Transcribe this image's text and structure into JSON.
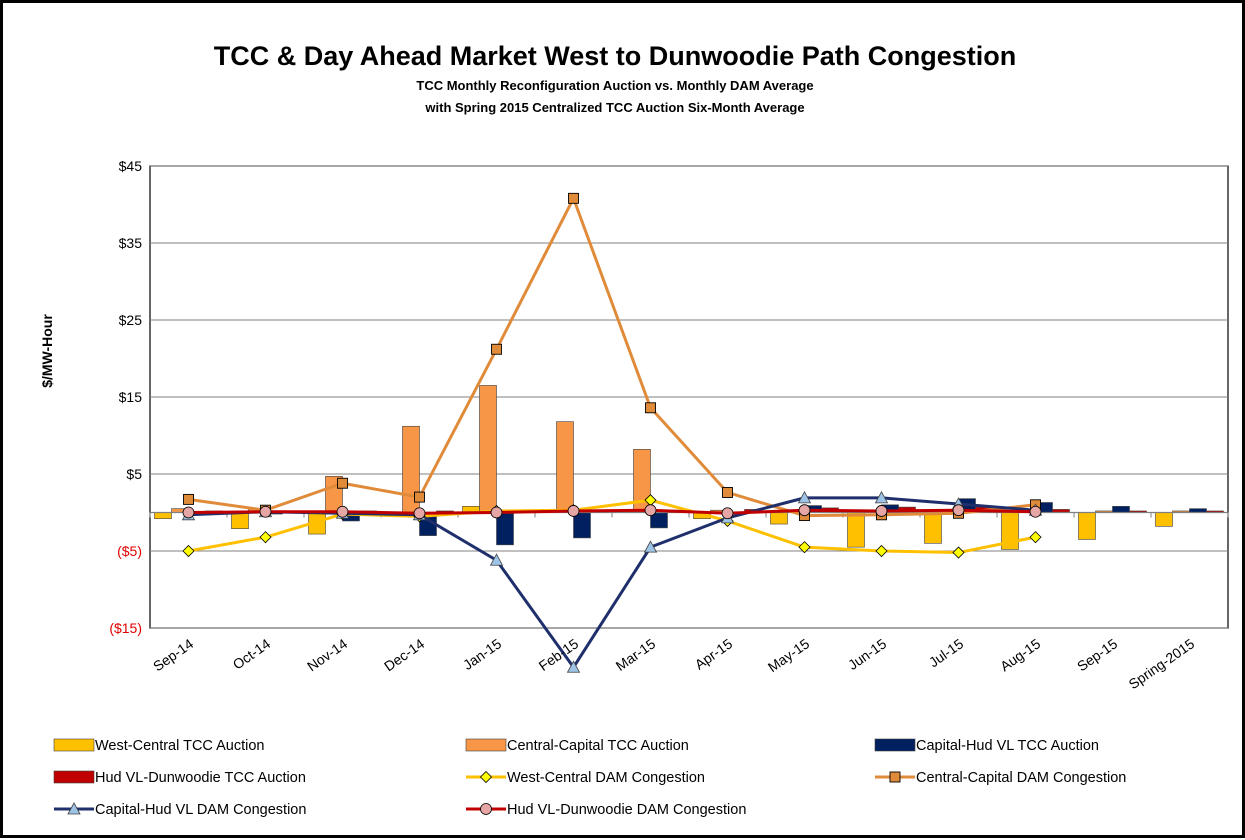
{
  "chart_data": {
    "type": "bar",
    "title": "TCC & Day Ahead Market West to Dunwoodie Path Congestion",
    "subtitle_lines": [
      "TCC Monthly Reconfiguration  Auction vs. Monthly DAM Average",
      "with  Spring 2015 Centralized TCC Auction Six-Month Average"
    ],
    "ylabel": "$/MW-Hour",
    "xlabel": "",
    "ylim": [
      -15,
      45
    ],
    "yticks": [
      {
        "value": 45,
        "label": "$45"
      },
      {
        "value": 35,
        "label": "$35"
      },
      {
        "value": 25,
        "label": "$25"
      },
      {
        "value": 15,
        "label": "$15"
      },
      {
        "value": 5,
        "label": "$5"
      },
      {
        "value": -5,
        "label": "($5)"
      },
      {
        "value": -15,
        "label": "($15)"
      }
    ],
    "categories": [
      "Sep-14",
      "Oct-14",
      "Nov-14",
      "Dec-14",
      "Jan-15",
      "Feb-15",
      "Mar-15",
      "Apr-15",
      "May-15",
      "Jun-15",
      "Jul-15",
      "Aug-15",
      "Sep-15",
      "Spring-2015"
    ],
    "grid": true,
    "legend_position": "bottom",
    "bar_series": [
      {
        "name": "West-Central TCC Auction",
        "color": "#ffc000",
        "values": [
          -0.8,
          -2.1,
          -2.8,
          -0.5,
          0.8,
          0.4,
          0.2,
          -0.8,
          -1.5,
          -4.5,
          -4.0,
          -4.8,
          -3.5,
          -1.8
        ]
      },
      {
        "name": "Central-Capital  TCC Auction",
        "color": "#f79646",
        "values": [
          0.5,
          0.5,
          4.7,
          11.2,
          16.5,
          11.8,
          8.2,
          0.3,
          0.3,
          0.3,
          0.3,
          0.3,
          0.2,
          0.2
        ]
      },
      {
        "name": "Capital-Hud VL  TCC Auction",
        "color": "#002060",
        "values": [
          -0.3,
          -0.2,
          -1.1,
          -3.0,
          -4.2,
          -3.3,
          -2.0,
          -0.2,
          0.9,
          1.0,
          1.8,
          1.3,
          0.8,
          0.5
        ]
      },
      {
        "name": "Hud VL-Dunwoodie  TCC Auction",
        "color": "#c00000",
        "values": [
          0.2,
          0.2,
          0.2,
          0.2,
          0.3,
          0.3,
          0.3,
          0.4,
          0.6,
          0.7,
          0.7,
          0.4,
          0.2,
          0.2
        ]
      }
    ],
    "line_series": [
      {
        "name": "West-Central  DAM Congestion",
        "color": "#ffc000",
        "marker": "diamond",
        "marker_fill": "#ffff00",
        "values": [
          -5.0,
          -3.2,
          -0.2,
          -0.5,
          0.2,
          0.3,
          1.6,
          -1.1,
          -4.5,
          -5.0,
          -5.2,
          -3.2,
          null,
          null
        ]
      },
      {
        "name": "Central-Capital  DAM Congestion",
        "color": "#e08b3a",
        "marker": "square",
        "marker_fill": "#e08b3a",
        "values": [
          1.7,
          0.3,
          3.8,
          2.0,
          21.2,
          40.8,
          13.6,
          2.6,
          -0.4,
          -0.3,
          -0.1,
          1.0,
          null,
          null
        ]
      },
      {
        "name": "Capital-Hud VL  DAM Congestion",
        "color": "#1f2f6b",
        "marker": "triangle",
        "marker_fill": "#9dc3e6",
        "values": [
          -0.3,
          0.1,
          -0.1,
          -0.3,
          -6.2,
          -20.1,
          -4.5,
          -0.7,
          1.9,
          1.9,
          1.1,
          0.3,
          null,
          null
        ]
      },
      {
        "name": "Hud VL-Dunwoodie  DAM Congestion",
        "color": "#c00000",
        "marker": "circle",
        "marker_fill": "#e6a6a6",
        "values": [
          0.0,
          0.1,
          0.1,
          -0.1,
          0.0,
          0.2,
          0.3,
          -0.1,
          0.3,
          0.2,
          0.3,
          0.1,
          null,
          null
        ]
      }
    ]
  },
  "legend": {
    "items": [
      {
        "label": "West-Central TCC Auction"
      },
      {
        "label": "Central-Capital  TCC Auction"
      },
      {
        "label": "Capital-Hud VL  TCC Auction"
      },
      {
        "label": "Hud VL-Dunwoodie  TCC Auction"
      },
      {
        "label": "West-Central  DAM Congestion"
      },
      {
        "label": "Central-Capital  DAM Congestion"
      },
      {
        "label": "Capital-Hud VL  DAM Congestion"
      },
      {
        "label": "Hud VL-Dunwoodie  DAM Congestion"
      }
    ]
  }
}
